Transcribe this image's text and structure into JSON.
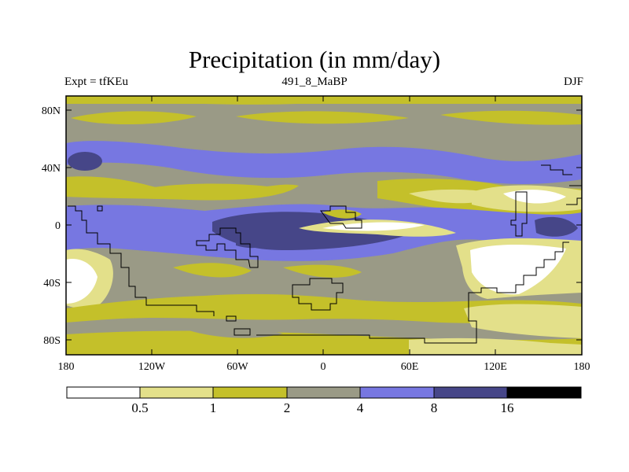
{
  "title": "Precipitation (in mm/day)",
  "left_label": "Expt = tfKEu",
  "center_label": "491_8_MaBP",
  "right_label": "DJF",
  "axes": {
    "y_ticks": [
      "80N",
      "40N",
      "0",
      "40S",
      "80S"
    ],
    "x_ticks": [
      "180",
      "120W",
      "60W",
      "0",
      "60E",
      "120E",
      "180"
    ]
  },
  "colorbar": {
    "levels": [
      "0.5",
      "1",
      "2",
      "4",
      "8",
      "16"
    ],
    "colors": [
      "#ffffff",
      "#e3e08a",
      "#c4c02a",
      "#9a9a86",
      "#7777e1",
      "#464688",
      "#000000"
    ]
  }
}
